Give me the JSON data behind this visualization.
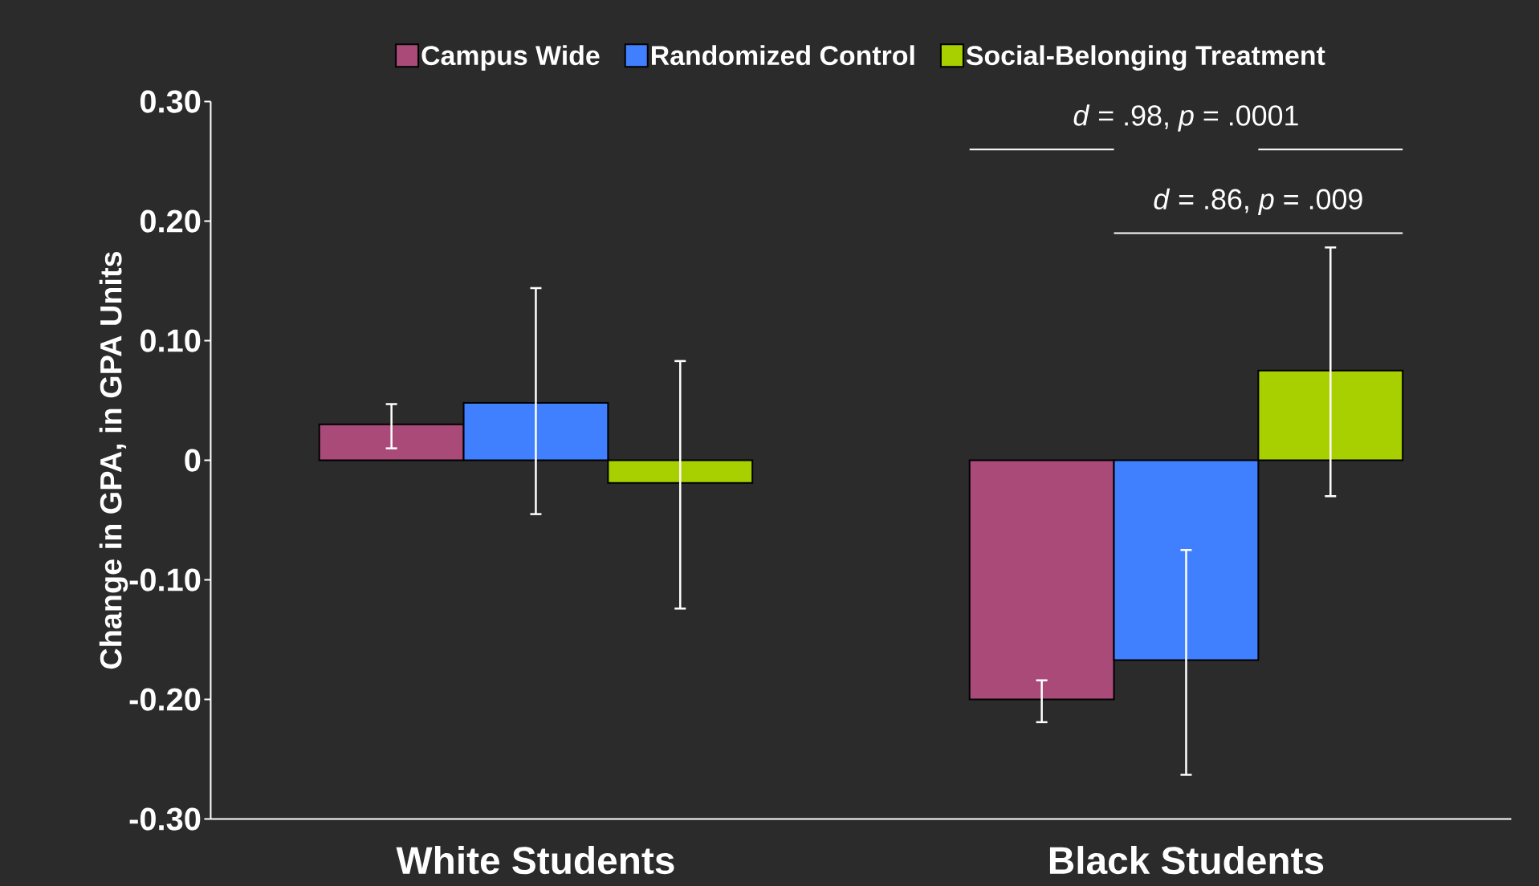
{
  "chart_data": {
    "type": "bar",
    "ylabel": "Change in GPA, in GPA Units",
    "categories": [
      "White Students",
      "Black Students"
    ],
    "series": [
      {
        "name": "Campus Wide",
        "color": "#a94a78",
        "values": [
          0.03,
          -0.2
        ],
        "errors": [
          [
            0.01,
            0.047
          ],
          [
            -0.219,
            -0.184
          ]
        ]
      },
      {
        "name": "Randomized Control",
        "color": "#4080ff",
        "values": [
          0.048,
          -0.167
        ],
        "errors": [
          [
            -0.045,
            0.144
          ],
          [
            -0.263,
            -0.075
          ]
        ]
      },
      {
        "name": "Social-Belonging Treatment",
        "color": "#a8d000",
        "values": [
          -0.019,
          0.075
        ],
        "errors": [
          [
            -0.124,
            0.083
          ],
          [
            -0.03,
            0.178
          ]
        ]
      }
    ],
    "ylim": [
      -0.3,
      0.3
    ],
    "yticks": [
      {
        "value": -0.3,
        "label": "-0.30"
      },
      {
        "value": -0.2,
        "label": "-0.20"
      },
      {
        "value": -0.1,
        "label": "-0.10"
      },
      0,
      {
        "value": 0.1,
        "label": "0.10"
      },
      {
        "value": 0.2,
        "label": "0.20"
      },
      {
        "value": 0.3,
        "label": "0.30"
      }
    ],
    "annotations": [
      "*d* = .98, *p* = .0001",
      "*d* = .86, *p* = .009"
    ],
    "legend": "top",
    "grid": false
  }
}
